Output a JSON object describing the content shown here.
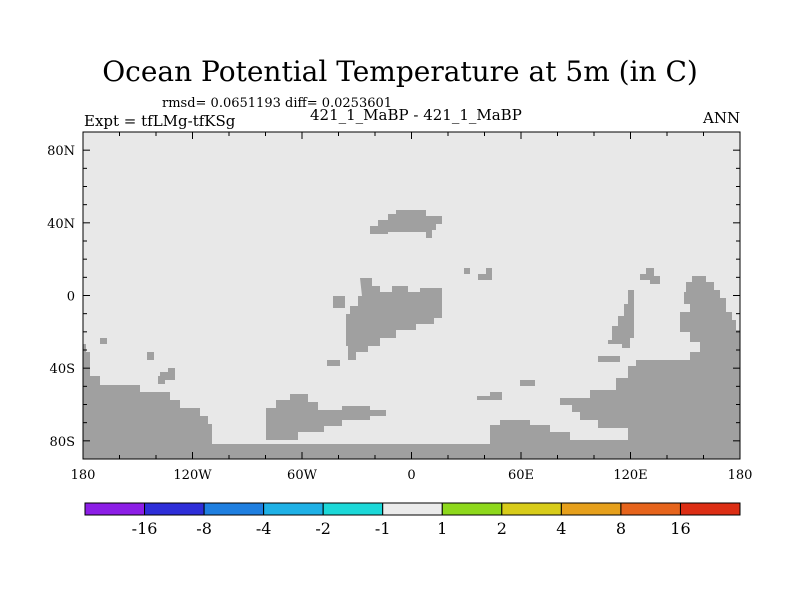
{
  "title": "Ocean Potential Temperature at 5m (in C)",
  "stats": "rmsd= 0.0651193 diff= 0.0253601",
  "left_string": "Expt = tfLMg-tfKSg",
  "center_string": "421_1_MaBP - 421_1_MaBP",
  "right_string": "ANN",
  "colors": {
    "ocean": "#e8e8e8",
    "land": "#a0a0a0",
    "frame": "#000000"
  },
  "map": {
    "projection": "cylindrical-equidistant",
    "lon_range": [
      -180,
      180
    ],
    "lat_range": [
      -90,
      90
    ],
    "x_ticks": [
      "180",
      "120W",
      "60W",
      "0",
      "60E",
      "120E",
      "180"
    ],
    "y_ticks": [
      "80N",
      "40N",
      "0",
      "40S",
      "80S"
    ]
  },
  "colorbar": {
    "labels": [
      "-16",
      "-8",
      "-4",
      "-2",
      "-1",
      "1",
      "2",
      "4",
      "8",
      "16"
    ],
    "colors": [
      "#8c1ee6",
      "#2e2ed8",
      "#1f7fe0",
      "#1fb1e6",
      "#1cd8d8",
      "#ebebeb",
      "#8ed81c",
      "#d8cc1a",
      "#e6a01c",
      "#e6641c",
      "#dc2e14"
    ]
  }
}
